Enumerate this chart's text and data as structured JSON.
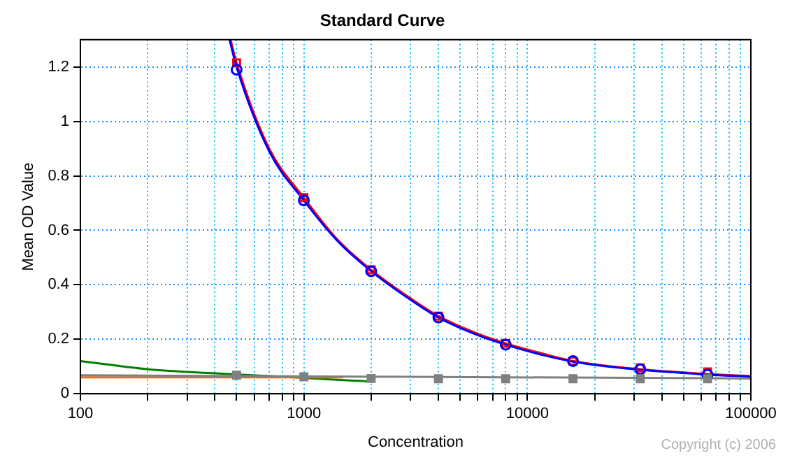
{
  "chart_data": {
    "type": "scatter",
    "title": "Standard Curve",
    "xlabel": "Concentration",
    "ylabel": "Mean OD Value",
    "log": "x",
    "grid": true,
    "legend": false,
    "xlim": [
      100,
      100000
    ],
    "xticks": [
      100,
      {
        "value": 200,
        "label": null
      },
      {
        "value": 300,
        "label": null
      },
      {
        "value": 400,
        "label": null
      },
      {
        "value": 500,
        "label": null
      },
      {
        "value": 600,
        "label": null
      },
      {
        "value": 700,
        "label": null
      },
      {
        "value": 800,
        "label": null
      },
      {
        "value": 900,
        "label": null
      },
      1000,
      {
        "value": 2000,
        "label": null
      },
      {
        "value": 3000,
        "label": null
      },
      {
        "value": 4000,
        "label": null
      },
      {
        "value": 5000,
        "label": null
      },
      {
        "value": 6000,
        "label": null
      },
      {
        "value": 7000,
        "label": null
      },
      {
        "value": 8000,
        "label": null
      },
      {
        "value": 9000,
        "label": null
      },
      10000,
      {
        "value": 20000,
        "label": null
      },
      {
        "value": 30000,
        "label": null
      },
      {
        "value": 40000,
        "label": null
      },
      {
        "value": 50000,
        "label": null
      },
      {
        "value": 60000,
        "label": null
      },
      {
        "value": 70000,
        "label": null
      },
      {
        "value": 80000,
        "label": null
      },
      {
        "value": 90000,
        "label": null
      },
      100000
    ],
    "ylim": [
      0,
      1.3
    ],
    "yticks": [
      0,
      0.2,
      0.4,
      0.6,
      0.8,
      1,
      1.2
    ],
    "series": [
      {
        "type": "line",
        "marker": "none",
        "color": "#ff0000",
        "x": [
          470,
          500,
          700,
          1000,
          1400,
          2000,
          3000,
          4000,
          6000,
          8000,
          12000,
          16000,
          24000,
          32000,
          50000,
          64000,
          100000
        ],
        "values": [
          1.3,
          1.215,
          0.9,
          0.72,
          0.57,
          0.455,
          0.35,
          0.285,
          0.22,
          0.185,
          0.145,
          0.12,
          0.1,
          0.09,
          0.078,
          0.072,
          0.065
        ]
      },
      {
        "type": "line",
        "marker": "none",
        "color": "#0000ff",
        "x": [
          465,
          500,
          700,
          1000,
          1400,
          2000,
          3000,
          4000,
          6000,
          8000,
          12000,
          16000,
          24000,
          32000,
          50000,
          64000,
          100000
        ],
        "values": [
          1.3,
          1.2,
          0.89,
          0.71,
          0.565,
          0.45,
          0.345,
          0.28,
          0.215,
          0.18,
          0.14,
          0.118,
          0.098,
          0.088,
          0.076,
          0.07,
          0.063
        ]
      },
      {
        "type": "line",
        "marker": "none",
        "color": "#008000",
        "x": [
          100,
          200,
          400,
          700,
          1000,
          1500,
          2000
        ],
        "values": [
          0.12,
          0.09,
          0.075,
          0.065,
          0.058,
          0.05,
          0.045
        ]
      },
      {
        "type": "line",
        "marker": "none",
        "color": "#ff6600",
        "x": [
          100,
          1500
        ],
        "values": [
          0.06,
          0.06
        ]
      },
      {
        "type": "line",
        "marker": "none",
        "color": "#808080",
        "x": [
          100,
          100000
        ],
        "values": [
          0.068,
          0.056
        ]
      },
      {
        "type": "scatter",
        "marker": "square",
        "color": "#ff0000",
        "x": [
          500,
          1000,
          2000,
          4000,
          8000,
          16000,
          32000,
          64000
        ],
        "values": [
          1.215,
          0.72,
          0.455,
          0.285,
          0.185,
          0.12,
          0.095,
          0.08
        ]
      },
      {
        "type": "scatter",
        "marker": "circle",
        "color": "#0000ff",
        "x": [
          500,
          1000,
          2000,
          4000,
          8000,
          16000,
          32000,
          64000
        ],
        "values": [
          1.19,
          0.71,
          0.45,
          0.28,
          0.18,
          0.12,
          0.09,
          0.07
        ]
      },
      {
        "type": "scatter",
        "marker": "square",
        "color": "#808080",
        "x": [
          500,
          1000,
          2000,
          4000,
          8000,
          16000,
          32000,
          64000
        ],
        "values": [
          0.068,
          0.062,
          0.056,
          0.055,
          0.055,
          0.055,
          0.055,
          0.055
        ]
      }
    ],
    "annotations": [
      "Copyright (c) 2006"
    ]
  }
}
